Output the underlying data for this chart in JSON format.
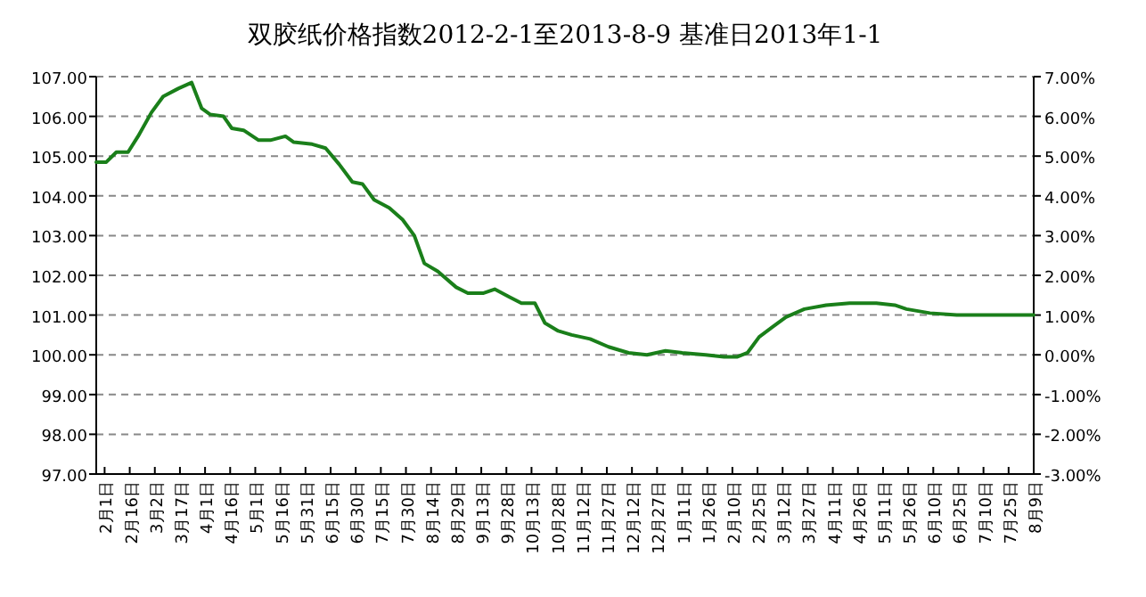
{
  "chart_data": {
    "type": "line",
    "title": "双胶纸价格指数2012-2-1至2013-8-9 基准日2013年1-1",
    "x": [
      "2012-01-27",
      "2012-02-02",
      "2012-02-08",
      "2012-02-15",
      "2012-02-21",
      "2012-02-29",
      "2012-03-07",
      "2012-03-16",
      "2012-03-24",
      "2012-03-30",
      "2012-04-04",
      "2012-04-12",
      "2012-04-17",
      "2012-04-24",
      "2012-05-03",
      "2012-05-10",
      "2012-05-19",
      "2012-05-24",
      "2012-06-04",
      "2012-06-12",
      "2012-06-20",
      "2012-06-28",
      "2012-07-04",
      "2012-07-11",
      "2012-07-20",
      "2012-07-28",
      "2012-08-04",
      "2012-08-10",
      "2012-08-18",
      "2012-08-29",
      "2012-09-05",
      "2012-09-14",
      "2012-09-21",
      "2012-09-30",
      "2012-10-07",
      "2012-10-15",
      "2012-10-21",
      "2012-10-29",
      "2012-11-06",
      "2012-11-17",
      "2012-11-28",
      "2012-12-10",
      "2012-12-21",
      "2013-01-01",
      "2013-01-11",
      "2013-01-25",
      "2013-02-05",
      "2013-02-13",
      "2013-02-19",
      "2013-02-26",
      "2013-03-06",
      "2013-03-14",
      "2013-03-25",
      "2013-04-07",
      "2013-04-21",
      "2013-05-07",
      "2013-05-18",
      "2013-05-25",
      "2013-06-08",
      "2013-06-24",
      "2013-08-09"
    ],
    "series": [
      {
        "color": "#1a7f1a",
        "values": [
          104.85,
          104.85,
          105.1,
          105.1,
          105.5,
          106.1,
          106.5,
          106.7,
          106.85,
          106.2,
          106.05,
          106.0,
          105.7,
          105.65,
          105.4,
          105.4,
          105.5,
          105.35,
          105.3,
          105.2,
          104.8,
          104.35,
          104.3,
          103.9,
          103.7,
          103.4,
          103.0,
          102.3,
          102.1,
          101.7,
          101.55,
          101.55,
          101.65,
          101.45,
          101.3,
          101.3,
          100.8,
          100.6,
          100.5,
          100.4,
          100.2,
          100.05,
          100.0,
          100.1,
          100.05,
          100.0,
          99.95,
          99.95,
          100.05,
          100.45,
          100.7,
          100.95,
          101.15,
          101.25,
          101.3,
          101.3,
          101.25,
          101.15,
          101.05,
          101.0,
          101.0
        ]
      }
    ],
    "xlim": [
      "2012-01-27",
      "2013-08-09"
    ],
    "xticks": [
      {
        "value": "2012-02-01",
        "label": "2月1日"
      },
      {
        "value": "2012-02-16",
        "label": "2月16日"
      },
      {
        "value": "2012-03-02",
        "label": "3月2日"
      },
      {
        "value": "2012-03-17",
        "label": "3月17日"
      },
      {
        "value": "2012-04-01",
        "label": "4月1日"
      },
      {
        "value": "2012-04-16",
        "label": "4月16日"
      },
      {
        "value": "2012-05-01",
        "label": "5月1日"
      },
      {
        "value": "2012-05-16",
        "label": "5月16日"
      },
      {
        "value": "2012-05-31",
        "label": "5月31日"
      },
      {
        "value": "2012-06-15",
        "label": "6月15日"
      },
      {
        "value": "2012-06-30",
        "label": "6月30日"
      },
      {
        "value": "2012-07-15",
        "label": "7月15日"
      },
      {
        "value": "2012-07-30",
        "label": "7月30日"
      },
      {
        "value": "2012-08-14",
        "label": "8月14日"
      },
      {
        "value": "2012-08-29",
        "label": "8月29日"
      },
      {
        "value": "2012-09-13",
        "label": "9月13日"
      },
      {
        "value": "2012-09-28",
        "label": "9月28日"
      },
      {
        "value": "2012-10-13",
        "label": "10月13日"
      },
      {
        "value": "2012-10-28",
        "label": "10月28日"
      },
      {
        "value": "2012-11-12",
        "label": "11月12日"
      },
      {
        "value": "2012-11-27",
        "label": "11月27日"
      },
      {
        "value": "2012-12-12",
        "label": "12月12日"
      },
      {
        "value": "2012-12-27",
        "label": "12月27日"
      },
      {
        "value": "2013-01-11",
        "label": "1月11日"
      },
      {
        "value": "2013-01-26",
        "label": "1月26日"
      },
      {
        "value": "2013-02-10",
        "label": "2月10日"
      },
      {
        "value": "2013-02-25",
        "label": "2月25日"
      },
      {
        "value": "2013-03-12",
        "label": "3月12日"
      },
      {
        "value": "2013-03-27",
        "label": "3月27日"
      },
      {
        "value": "2013-04-11",
        "label": "4月11日"
      },
      {
        "value": "2013-04-26",
        "label": "4月26日"
      },
      {
        "value": "2013-05-11",
        "label": "5月11日"
      },
      {
        "value": "2013-05-26",
        "label": "5月26日"
      },
      {
        "value": "2013-06-10",
        "label": "6月10日"
      },
      {
        "value": "2013-06-25",
        "label": "6月25日"
      },
      {
        "value": "2013-07-10",
        "label": "7月10日"
      },
      {
        "value": "2013-07-25",
        "label": "7月25日"
      },
      {
        "value": "2013-08-09",
        "label": "8月9日"
      }
    ],
    "ylim": [
      97,
      107
    ],
    "yticks": [
      {
        "value": 97,
        "label": "97.00"
      },
      {
        "value": 98,
        "label": "98.00"
      },
      {
        "value": 99,
        "label": "99.00"
      },
      {
        "value": 100,
        "label": "100.00"
      },
      {
        "value": 101,
        "label": "101.00"
      },
      {
        "value": 102,
        "label": "102.00"
      },
      {
        "value": 103,
        "label": "103.00"
      },
      {
        "value": 104,
        "label": "104.00"
      },
      {
        "value": 105,
        "label": "105.00"
      },
      {
        "value": 106,
        "label": "106.00"
      },
      {
        "value": 107,
        "label": "107.00"
      }
    ],
    "y2lim": [
      -3,
      7
    ],
    "y2ticks": [
      {
        "value": -3,
        "label": "-3.00%"
      },
      {
        "value": -2,
        "label": "-2.00%"
      },
      {
        "value": -1,
        "label": "-1.00%"
      },
      {
        "value": 0,
        "label": "0.00%"
      },
      {
        "value": 1,
        "label": "1.00%"
      },
      {
        "value": 2,
        "label": "2.00%"
      },
      {
        "value": 3,
        "label": "3.00%"
      },
      {
        "value": 4,
        "label": "4.00%"
      },
      {
        "value": 5,
        "label": "5.00%"
      },
      {
        "value": 6,
        "label": "6.00%"
      },
      {
        "value": 7,
        "label": "7.00%"
      }
    ],
    "grid": "y",
    "marker": "none",
    "line_style": "solid"
  }
}
